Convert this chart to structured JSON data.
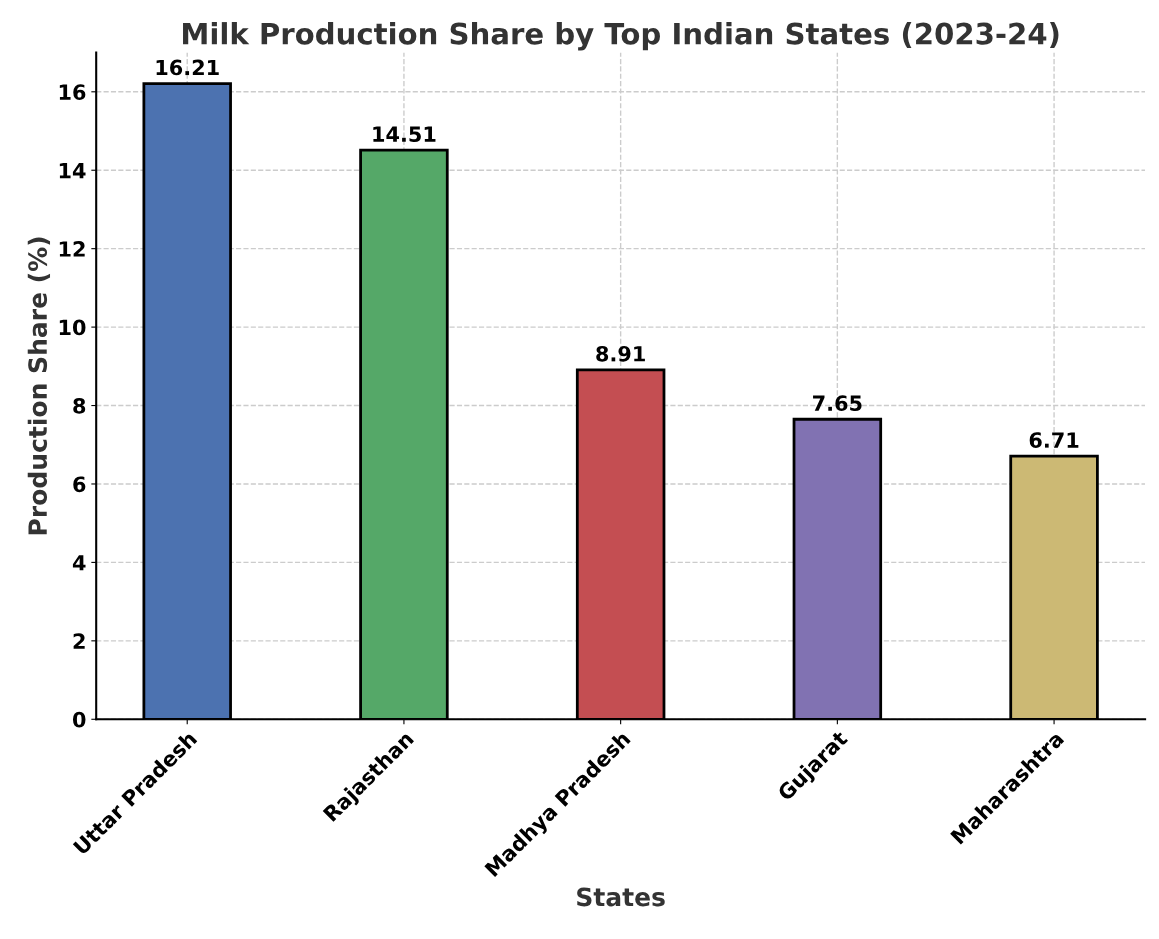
{
  "chart_data": {
    "type": "bar",
    "title": "Milk Production Share by Top Indian States (2023-24)",
    "xlabel": "States",
    "ylabel": "Production Share (%)",
    "categories": [
      "Uttar Pradesh",
      "Rajasthan",
      "Madhya Pradesh",
      "Gujarat",
      "Maharashtra"
    ],
    "values": [
      16.21,
      14.51,
      8.91,
      7.65,
      6.71
    ],
    "colors": [
      "#4c72b0",
      "#55a868",
      "#c44e52",
      "#8172b2",
      "#ccb974"
    ],
    "ylim": [
      0,
      17
    ],
    "yticks": [
      0,
      2,
      4,
      6,
      8,
      10,
      12,
      14,
      16
    ],
    "grid": true,
    "data_labels": true
  }
}
